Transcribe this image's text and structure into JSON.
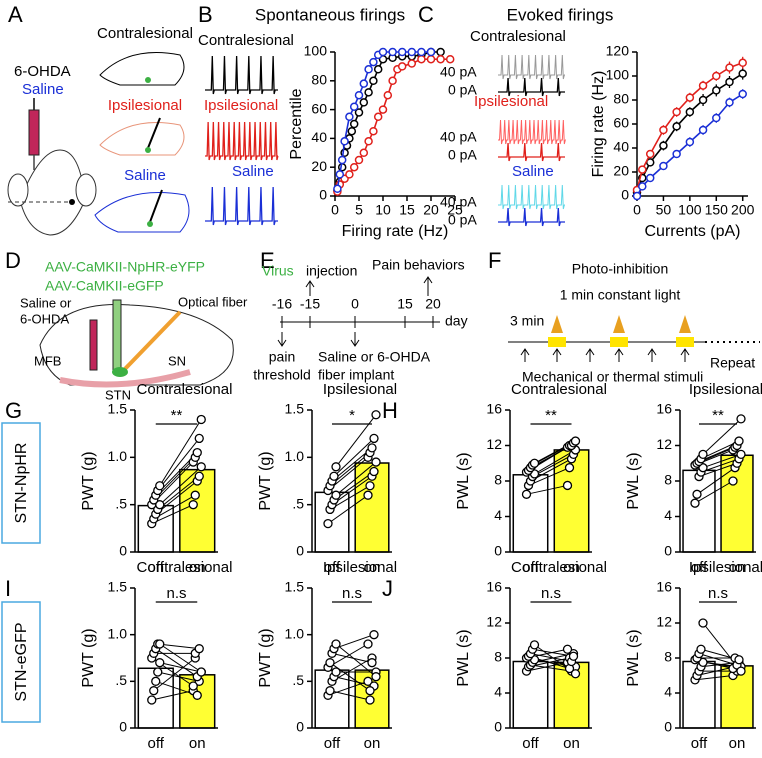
{
  "panel_labels": [
    "A",
    "B",
    "C",
    "D",
    "E",
    "F",
    "G",
    "H",
    "I",
    "J"
  ],
  "row_labels": [
    "STN-NpHR",
    "STN-eGFP"
  ],
  "panel_a": {
    "drug": "6-OHDA",
    "control": "Saline",
    "slices": [
      "Contralesional",
      "Ipsilesional",
      "Saline"
    ]
  },
  "panel_d": {
    "virus_1": "AAV-CaMKII-NpHR-eYFP",
    "virus_2": "AAV-CaMKII-eGFP",
    "injection_1": "Saline or",
    "injection_2": "6-OHDA",
    "fiber": "Optical fiber",
    "regions": [
      "MFB",
      "SN",
      "STN"
    ]
  },
  "panel_e": {
    "virus": "Virus",
    "injection": "injection",
    "behaviors": "Pain behaviors",
    "days": [
      "-16",
      "-15",
      "0",
      "15",
      "20"
    ],
    "unit": "day",
    "threshold_1": "pain",
    "threshold_2": "threshold",
    "implant_1": "Saline or 6-OHDA",
    "implant_2": "fiber implant"
  },
  "panel_f": {
    "title": "Photo-inhibition",
    "light": "1 min constant light",
    "interval": "3 min",
    "stimuli": "Mechanical or thermal stimuli",
    "repeat": "Repeat"
  },
  "chart_data": [
    {
      "type": "line",
      "title": "Spontaneous firings",
      "xlabel": "Firing rate (Hz)",
      "ylabel": "Percentile",
      "xlim": [
        0,
        25
      ],
      "xticks": [
        0,
        5,
        10,
        15,
        20,
        25
      ],
      "ylim": [
        0,
        100
      ],
      "yticks": [
        0,
        20,
        40,
        60,
        80,
        100
      ],
      "series": [
        {
          "name": "Contralesional",
          "color": "#000000",
          "x": [
            0.5,
            1,
            1.5,
            2,
            2.5,
            3,
            3.5,
            4,
            5,
            6,
            7,
            8,
            9,
            10,
            12,
            14,
            16,
            18,
            20,
            22
          ],
          "values": [
            4,
            10,
            20,
            30,
            35,
            40,
            45,
            50,
            58,
            65,
            72,
            80,
            88,
            95,
            96,
            97,
            97,
            98,
            100,
            100
          ]
        },
        {
          "name": "Ipsilesional",
          "color": "#e0201b",
          "x": [
            0.5,
            1,
            2,
            3,
            4,
            5,
            6,
            7,
            8,
            9,
            10,
            11,
            12,
            13,
            14,
            16,
            18,
            20,
            22,
            24
          ],
          "values": [
            3,
            8,
            12,
            15,
            20,
            25,
            30,
            38,
            45,
            55,
            60,
            70,
            80,
            88,
            90,
            92,
            95,
            95,
            95,
            95
          ]
        },
        {
          "name": "Saline",
          "color": "#1a2fd6",
          "x": [
            0.5,
            1,
            1.5,
            2,
            3,
            4,
            5,
            6,
            7,
            8,
            9,
            10,
            12,
            14,
            16,
            18,
            20
          ],
          "values": [
            5,
            15,
            25,
            38,
            55,
            62,
            70,
            78,
            88,
            93,
            98,
            100,
            100,
            100,
            100,
            100,
            100
          ]
        }
      ]
    },
    {
      "type": "line",
      "title": "Evoked firings",
      "xlabel": "Currents (pA)",
      "ylabel": "Firing rate (Hz)",
      "trace_labels": [
        "40 pA",
        "0 pA"
      ],
      "x": [
        0,
        10,
        25,
        50,
        75,
        100,
        125,
        150,
        175,
        200
      ],
      "xlim": [
        0,
        210
      ],
      "xticks": [
        0,
        50,
        100,
        150,
        200
      ],
      "ylim": [
        0,
        120
      ],
      "yticks": [
        0,
        20,
        40,
        60,
        80,
        100,
        120
      ],
      "series": [
        {
          "name": "Contralesional",
          "color": "#000000",
          "values": [
            3,
            15,
            28,
            42,
            58,
            70,
            80,
            88,
            95,
            102
          ],
          "errors": [
            2,
            3,
            3,
            4,
            4,
            4,
            5,
            5,
            5,
            5
          ]
        },
        {
          "name": "Ipsilesional",
          "color": "#e0201b",
          "values": [
            5,
            22,
            35,
            55,
            70,
            82,
            92,
            100,
            107,
            111
          ],
          "errors": [
            2,
            3,
            3,
            4,
            4,
            4,
            4,
            4,
            5,
            5
          ]
        },
        {
          "name": "Saline",
          "color": "#1a2fd6",
          "values": [
            0,
            8,
            15,
            25,
            35,
            45,
            55,
            65,
            78,
            85
          ],
          "errors": [
            1,
            2,
            2,
            3,
            3,
            4,
            4,
            4,
            4,
            4
          ]
        }
      ]
    },
    {
      "type": "bar",
      "title": "Contralesional",
      "ylabel": "PWT (g)",
      "categories": [
        "off",
        "on"
      ],
      "values": [
        0.49,
        0.87
      ],
      "colors": [
        "#ffffff",
        "#ffff33"
      ],
      "significance": "**",
      "ylim": [
        0,
        1.5
      ],
      "yticks": [
        0,
        {
          "value": 0.5,
          "label": ".5"
        },
        {
          "value": 1,
          "label": "1.0"
        },
        {
          "value": 1.5,
          "label": "1.5"
        }
      ],
      "pairs": {
        "off": [
          0.3,
          0.35,
          0.4,
          0.45,
          0.5,
          0.5,
          0.55,
          0.6,
          0.65,
          0.7
        ],
        "on": [
          0.5,
          0.6,
          0.75,
          0.8,
          0.9,
          0.95,
          1.0,
          1.05,
          1.2,
          1.4
        ]
      }
    },
    {
      "type": "bar",
      "title": "Ipsilesional",
      "ylabel": "PWT (g)",
      "categories": [
        "off",
        "on"
      ],
      "values": [
        0.63,
        0.94
      ],
      "colors": [
        "#ffffff",
        "#ffff33"
      ],
      "significance": "*",
      "ylim": [
        0,
        1.5
      ],
      "yticks": [
        0,
        {
          "value": 0.5,
          "label": ".5"
        },
        {
          "value": 1,
          "label": "1.0"
        },
        {
          "value": 1.5,
          "label": "1.5"
        }
      ],
      "pairs": {
        "off": [
          0.3,
          0.45,
          0.5,
          0.55,
          0.6,
          0.65,
          0.7,
          0.75,
          0.8,
          0.9
        ],
        "on": [
          0.6,
          0.7,
          0.8,
          0.85,
          0.95,
          1.0,
          1.05,
          1.1,
          1.2,
          1.45
        ]
      }
    },
    {
      "type": "bar",
      "title": "Contralesional",
      "ylabel": "PWL (s)",
      "categories": [
        "off",
        "on"
      ],
      "values": [
        8.7,
        11.5
      ],
      "colors": [
        "#ffffff",
        "#ffff33"
      ],
      "significance": "**",
      "ylim": [
        0,
        16
      ],
      "yticks": [
        0,
        4,
        8,
        12,
        16
      ],
      "pairs": {
        "off": [
          6.5,
          7.5,
          8,
          8.5,
          8.8,
          9,
          9.2,
          9.5,
          9.8,
          10
        ],
        "on": [
          7.5,
          9.5,
          10.5,
          11,
          11.5,
          11.8,
          12,
          12,
          12.3,
          12.5
        ]
      }
    },
    {
      "type": "bar",
      "title": "Ipsilesional",
      "ylabel": "PWL (s)",
      "categories": [
        "off",
        "on"
      ],
      "values": [
        9.2,
        10.9
      ],
      "colors": [
        "#ffffff",
        "#ffff33"
      ],
      "significance": "**",
      "ylim": [
        0,
        16
      ],
      "yticks": [
        0,
        4,
        8,
        12,
        16
      ],
      "pairs": {
        "off": [
          5.5,
          6.5,
          8.5,
          9,
          9.5,
          9.8,
          10,
          10.2,
          10.5,
          11
        ],
        "on": [
          8,
          9.5,
          10,
          10.5,
          11,
          11.5,
          11.8,
          12,
          12.5,
          15
        ]
      }
    },
    {
      "type": "bar",
      "title": "Contralesional",
      "ylabel": "PWT (g)",
      "categories": [
        "off",
        "on"
      ],
      "values": [
        0.64,
        0.57
      ],
      "colors": [
        "#ffffff",
        "#ffff33"
      ],
      "significance": "n.s",
      "ylim": [
        0,
        1.5
      ],
      "yticks": [
        0,
        {
          "value": 0.5,
          "label": ".5"
        },
        {
          "value": 1,
          "label": "1.0"
        },
        {
          "value": 1.5,
          "label": "1.5"
        }
      ],
      "pairs": {
        "off": [
          0.3,
          0.4,
          0.5,
          0.6,
          0.7,
          0.75,
          0.8,
          0.85,
          0.9,
          0.9
        ],
        "on": [
          0.4,
          0.75,
          0.35,
          0.5,
          0.6,
          0.45,
          0.8,
          0.55,
          0.85,
          0.6
        ]
      }
    },
    {
      "type": "bar",
      "title": "Ipsilesional",
      "ylabel": "PWT (g)",
      "categories": [
        "off",
        "on"
      ],
      "values": [
        0.62,
        0.62
      ],
      "colors": [
        "#ffffff",
        "#ffff33"
      ],
      "significance": "n.s",
      "ylim": [
        0,
        1.5
      ],
      "yticks": [
        0,
        {
          "value": 0.5,
          "label": ".5"
        },
        {
          "value": 1,
          "label": "1.0"
        },
        {
          "value": 1.5,
          "label": "1.5"
        }
      ],
      "pairs": {
        "off": [
          0.35,
          0.4,
          0.5,
          0.55,
          0.6,
          0.65,
          0.7,
          0.8,
          0.85,
          0.9
        ],
        "on": [
          0.5,
          0.3,
          0.75,
          0.45,
          0.6,
          0.9,
          0.4,
          0.7,
          1.0,
          0.55
        ]
      }
    },
    {
      "type": "bar",
      "title": "Contralesional",
      "ylabel": "PWL (s)",
      "categories": [
        "off",
        "on"
      ],
      "values": [
        7.6,
        7.5
      ],
      "colors": [
        "#ffffff",
        "#ffff33"
      ],
      "significance": "n.s",
      "ylim": [
        0,
        16
      ],
      "yticks": [
        0,
        4,
        8,
        12,
        16
      ],
      "pairs": {
        "off": [
          6.5,
          7,
          7.2,
          7.5,
          7.8,
          8,
          8.2,
          8.5,
          9,
          9.5
        ],
        "on": [
          7.5,
          8,
          6.5,
          8.5,
          7,
          9,
          6.8,
          7.6,
          8.2,
          6.2
        ]
      }
    },
    {
      "type": "bar",
      "title": "Ipsilesional",
      "ylabel": "PWL (s)",
      "categories": [
        "off",
        "on"
      ],
      "values": [
        7.6,
        7.1
      ],
      "colors": [
        "#ffffff",
        "#ffff33"
      ],
      "significance": "n.s",
      "ylim": [
        0,
        16
      ],
      "yticks": [
        0,
        4,
        8,
        12,
        16
      ],
      "pairs": {
        "off": [
          5.5,
          6,
          6.5,
          7,
          7.5,
          7.8,
          8,
          8.5,
          9,
          12
        ],
        "on": [
          6,
          7,
          6.5,
          7.5,
          7,
          6.8,
          8,
          7.2,
          7.8,
          6.5
        ]
      }
    }
  ]
}
